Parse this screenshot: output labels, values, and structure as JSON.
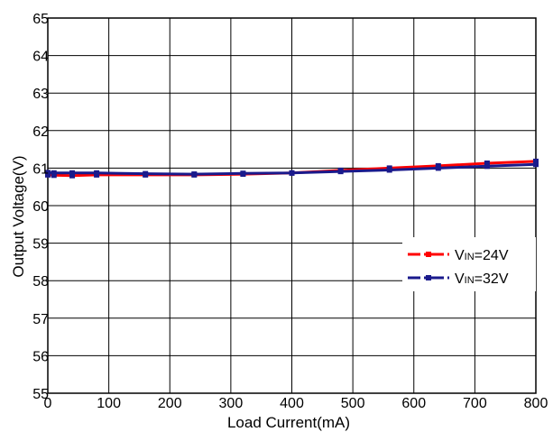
{
  "chart_data": {
    "type": "line",
    "title": "",
    "xlabel": "Load Current(mA)",
    "ylabel": "Output Voltage(V)",
    "xlim": [
      0,
      800
    ],
    "ylim": [
      55,
      65
    ],
    "x_ticks": [
      0,
      100,
      200,
      300,
      400,
      500,
      600,
      700,
      800
    ],
    "y_ticks": [
      55,
      56,
      57,
      58,
      59,
      60,
      61,
      62,
      63,
      64,
      65
    ],
    "grid": true,
    "legend_position": "right",
    "series": [
      {
        "name": "VIN=24V",
        "legend_sub": "IN",
        "legend_main_prefix": "V",
        "legend_suffix": "=24V",
        "color": "#ff0000",
        "line_style": "dash-dot",
        "x": [
          0,
          10,
          40,
          80,
          160,
          240,
          320,
          400,
          480,
          560,
          640,
          720,
          800
        ],
        "y": [
          60.82,
          60.81,
          60.8,
          60.82,
          60.82,
          60.82,
          60.84,
          60.87,
          60.94,
          61.0,
          61.06,
          61.13,
          61.18
        ]
      },
      {
        "name": "VIN=32V",
        "legend_sub": "IN",
        "legend_main_prefix": "V",
        "legend_suffix": "=32V",
        "color": "#1a1a8c",
        "line_style": "dash-dot",
        "x": [
          0,
          10,
          40,
          80,
          160,
          240,
          320,
          400,
          480,
          560,
          640,
          720,
          800
        ],
        "y": [
          60.88,
          60.87,
          60.87,
          60.87,
          60.85,
          60.84,
          60.86,
          60.87,
          60.91,
          60.95,
          61.0,
          61.05,
          61.1
        ]
      }
    ]
  }
}
